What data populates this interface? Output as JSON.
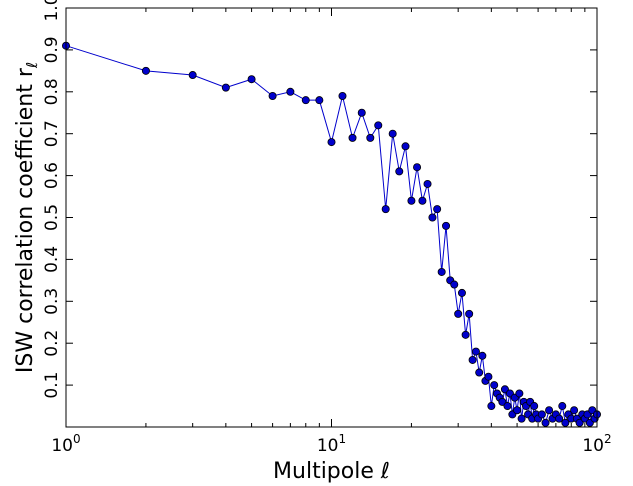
{
  "chart_data": {
    "type": "line",
    "xlabel": "Multipole ℓ",
    "ylabel": "ISW correlation coefficient r",
    "ylabel_subscript": "ℓ",
    "x_scale": "log",
    "xlim": [
      1,
      100
    ],
    "ylim": [
      0.0,
      1.0
    ],
    "grid": false,
    "legend": "none",
    "x_ticks": [
      {
        "value": 1,
        "base": "10",
        "exp": "0"
      },
      {
        "value": 10,
        "base": "10",
        "exp": "1"
      },
      {
        "value": 100,
        "base": "10",
        "exp": "2"
      }
    ],
    "y_ticks": [
      {
        "value": 0.1,
        "label": "0.1"
      },
      {
        "value": 0.2,
        "label": "0.2"
      },
      {
        "value": 0.3,
        "label": "0.3"
      },
      {
        "value": 0.4,
        "label": "0.4"
      },
      {
        "value": 0.5,
        "label": "0.5"
      },
      {
        "value": 0.6,
        "label": "0.6"
      },
      {
        "value": 0.7,
        "label": "0.7"
      },
      {
        "value": 0.8,
        "label": "0.8"
      },
      {
        "value": 0.9,
        "label": "0.9"
      },
      {
        "value": 1.0,
        "label": "1.0"
      }
    ],
    "series": [
      {
        "color": "#0000cc",
        "marker": "circle",
        "x": [
          1,
          2,
          3,
          4,
          5,
          6,
          7,
          8,
          9,
          10,
          11,
          12,
          13,
          14,
          15,
          16,
          17,
          18,
          19,
          20,
          21,
          22,
          23,
          24,
          25,
          26,
          27,
          28,
          29,
          30,
          31,
          32,
          33,
          34,
          35,
          36,
          37,
          38,
          39,
          40,
          41,
          42,
          43,
          44,
          45,
          46,
          47,
          48,
          49,
          50,
          51,
          52,
          53,
          54,
          55,
          56,
          57,
          58,
          59,
          60,
          62,
          64,
          66,
          68,
          70,
          72,
          74,
          76,
          78,
          80,
          82,
          84,
          86,
          88,
          90,
          92,
          94,
          96,
          98,
          100
        ],
        "y": [
          0.91,
          0.85,
          0.84,
          0.81,
          0.83,
          0.79,
          0.8,
          0.78,
          0.78,
          0.68,
          0.79,
          0.69,
          0.75,
          0.69,
          0.72,
          0.52,
          0.7,
          0.61,
          0.67,
          0.54,
          0.62,
          0.54,
          0.58,
          0.5,
          0.52,
          0.37,
          0.48,
          0.35,
          0.34,
          0.27,
          0.32,
          0.22,
          0.27,
          0.16,
          0.18,
          0.13,
          0.17,
          0.11,
          0.12,
          0.05,
          0.1,
          0.08,
          0.07,
          0.06,
          0.09,
          0.05,
          0.08,
          0.03,
          0.07,
          0.04,
          0.08,
          0.02,
          0.06,
          0.05,
          0.03,
          0.06,
          0.02,
          0.05,
          0.03,
          0.02,
          0.03,
          0.01,
          0.04,
          0.02,
          0.03,
          0.02,
          0.05,
          0.01,
          0.03,
          0.02,
          0.04,
          0.02,
          0.01,
          0.03,
          0.02,
          0.03,
          0.01,
          0.04,
          0.02,
          0.03
        ]
      }
    ]
  }
}
